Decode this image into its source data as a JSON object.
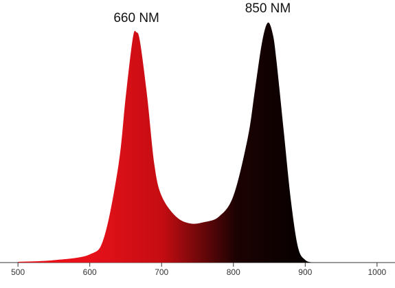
{
  "chart_data": {
    "type": "area",
    "x": [
      500,
      550,
      600,
      620,
      640,
      650,
      660,
      665,
      670,
      680,
      690,
      700,
      720,
      740,
      760,
      780,
      800,
      820,
      830,
      840,
      848,
      855,
      860,
      870,
      880,
      890,
      900,
      910
    ],
    "values": [
      0.3,
      1,
      3.4,
      10.6,
      40.7,
      69,
      93.7,
      96,
      92,
      69,
      40.7,
      27.8,
      19.2,
      16.3,
      16.9,
      19.2,
      27.8,
      52,
      72,
      92,
      100,
      95,
      84,
      55,
      26,
      6.3,
      1.1,
      0
    ],
    "colors": [
      "#e8111a",
      "#c40d12",
      "#1c0202",
      "#050000"
    ],
    "xlim": [
      475,
      1025
    ],
    "ylim": [
      0,
      100
    ],
    "xticks": [
      500,
      600,
      700,
      800,
      900,
      1000
    ],
    "annotations": [
      {
        "text": "660 NM",
        "x": 665
      },
      {
        "text": "850 NM",
        "x": 848
      }
    ]
  }
}
